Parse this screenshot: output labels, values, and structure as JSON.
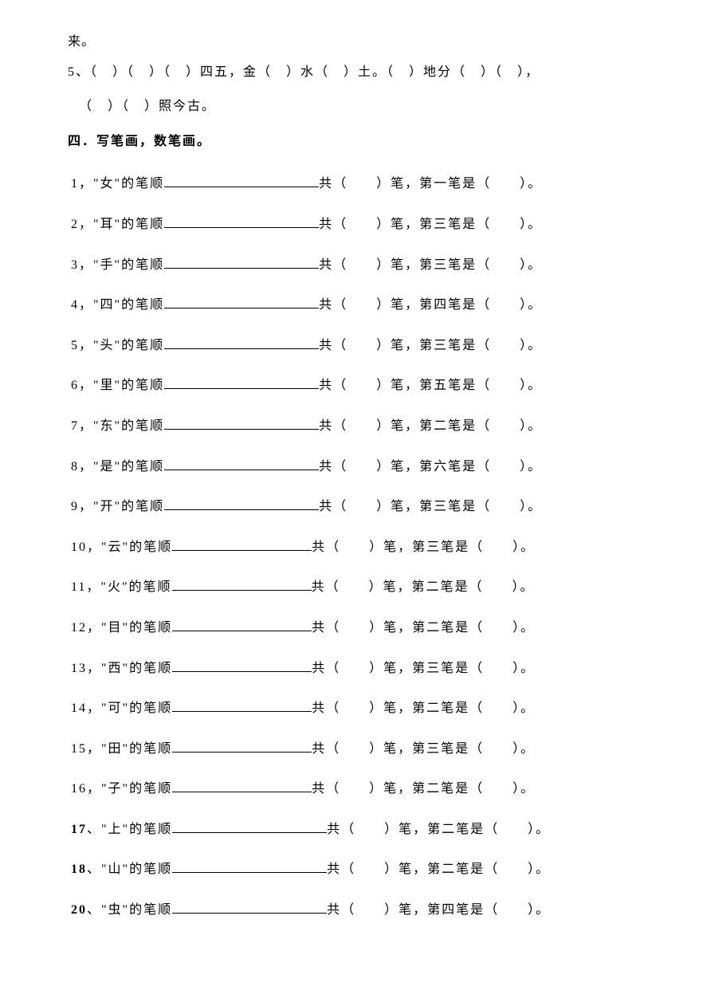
{
  "top": {
    "line1": "来。",
    "line2a": "5、（　）（　）（　）四五，金（　）水（　）土。（　）地分（　）（　），",
    "line2b": "（　）（　）照今古。"
  },
  "heading": "四．写笔画，数笔画。",
  "items": [
    {
      "num": "1",
      "sep": "，",
      "char": "女",
      "stroke": "一",
      "bold": false,
      "short": false
    },
    {
      "num": "2",
      "sep": "，",
      "char": "耳",
      "stroke": "三",
      "bold": false,
      "short": false
    },
    {
      "num": "3",
      "sep": "，",
      "char": "手",
      "stroke": "三",
      "bold": false,
      "short": false
    },
    {
      "num": "4",
      "sep": "，",
      "char": "四",
      "stroke": "四",
      "bold": false,
      "short": false
    },
    {
      "num": "5",
      "sep": "，",
      "char": "头",
      "stroke": "三",
      "bold": false,
      "short": false
    },
    {
      "num": "6",
      "sep": "，",
      "char": "里",
      "stroke": "五",
      "bold": false,
      "short": false
    },
    {
      "num": "7",
      "sep": "，",
      "char": "东",
      "stroke": "二",
      "bold": false,
      "short": false
    },
    {
      "num": "8",
      "sep": "，",
      "char": "是",
      "stroke": "六",
      "bold": false,
      "short": false
    },
    {
      "num": "9",
      "sep": "，",
      "char": "开",
      "stroke": "三",
      "bold": false,
      "short": false
    },
    {
      "num": "10",
      "sep": "，",
      "char": "云",
      "stroke": "三",
      "bold": false,
      "short": true
    },
    {
      "num": "11",
      "sep": "，",
      "char": "火",
      "stroke": "二",
      "bold": false,
      "short": true
    },
    {
      "num": "12",
      "sep": "，",
      "char": "目",
      "stroke": "二",
      "bold": false,
      "short": true
    },
    {
      "num": "13",
      "sep": "，",
      "char": "西",
      "stroke": "三",
      "bold": false,
      "short": true
    },
    {
      "num": "14",
      "sep": "，",
      "char": "可",
      "stroke": "二",
      "bold": false,
      "short": true
    },
    {
      "num": "15",
      "sep": "，",
      "char": "田",
      "stroke": "三",
      "bold": false,
      "short": true
    },
    {
      "num": "16",
      "sep": "，",
      "char": "子",
      "stroke": "二",
      "bold": false,
      "short": true
    },
    {
      "num": "17",
      "sep": "、",
      "char": "上",
      "stroke": "二",
      "bold": true,
      "short": false
    },
    {
      "num": "18",
      "sep": "、",
      "char": "山",
      "stroke": "二",
      "bold": true,
      "short": false
    },
    {
      "num": "20",
      "sep": "、",
      "char": "虫",
      "stroke": "四",
      "bold": true,
      "short": false
    }
  ],
  "labels": {
    "prefix_open": "\"",
    "prefix_close": "\"的笔顺",
    "mid": "共（　　）笔，第",
    "suffix": "笔是（　　）。"
  }
}
